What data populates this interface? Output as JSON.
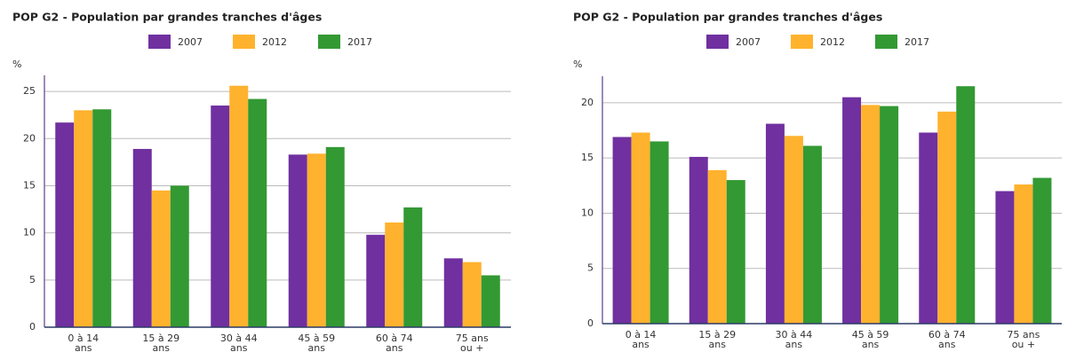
{
  "chart_data": [
    {
      "type": "bar",
      "title": "POP G2 - Population par grandes tranches d'âges",
      "y_label": "%",
      "categories": [
        "0 à 14 ans",
        "15 à 29 ans",
        "30 à 44 ans",
        "45 à 59 ans",
        "60 à 74 ans",
        "75 ans ou +"
      ],
      "series": [
        {
          "name": "2007",
          "color": "#7030a0",
          "values": [
            21.7,
            18.9,
            23.5,
            18.3,
            9.8,
            7.3
          ]
        },
        {
          "name": "2012",
          "color": "#ffb22e",
          "values": [
            23.0,
            14.5,
            25.6,
            18.4,
            11.1,
            6.9
          ]
        },
        {
          "name": "2017",
          "color": "#339933",
          "values": [
            23.1,
            15.0,
            24.2,
            19.1,
            12.7,
            5.5
          ]
        }
      ],
      "ylim": [
        0,
        26.7
      ],
      "yticks": [
        0,
        5,
        10,
        15,
        20,
        25
      ],
      "grid": true
    },
    {
      "type": "bar",
      "title": "POP G2 - Population par grandes tranches d'âges",
      "y_label": "%",
      "categories": [
        "0 à 14 ans",
        "15 à 29 ans",
        "30 à 44 ans",
        "45 à 59 ans",
        "60 à 74 ans",
        "75 ans ou +"
      ],
      "series": [
        {
          "name": "2007",
          "color": "#7030a0",
          "values": [
            16.9,
            15.1,
            18.1,
            20.5,
            17.3,
            12.0
          ]
        },
        {
          "name": "2012",
          "color": "#ffb22e",
          "values": [
            17.3,
            13.9,
            17.0,
            19.8,
            19.2,
            12.6
          ]
        },
        {
          "name": "2017",
          "color": "#339933",
          "values": [
            16.5,
            13.0,
            16.1,
            19.7,
            21.5,
            13.2
          ]
        }
      ],
      "ylim": [
        0,
        22.4
      ],
      "yticks": [
        0,
        5,
        10,
        15,
        20
      ],
      "grid": true
    }
  ]
}
